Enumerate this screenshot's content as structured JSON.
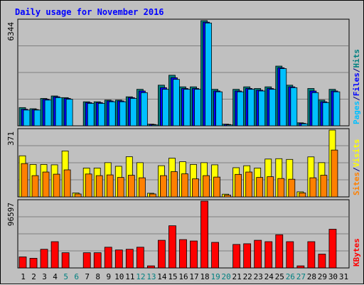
{
  "title": "Daily usage for November 2016",
  "panels": {
    "top": {
      "ymax_label": "6344",
      "legend": [
        {
          "text": "Pages",
          "color": "#00c0ff"
        },
        {
          "text": "/",
          "color": "#000080"
        },
        {
          "text": "Files",
          "color": "#0000ff"
        },
        {
          "text": "/",
          "color": "#000080"
        },
        {
          "text": "Hits",
          "color": "#008080"
        }
      ]
    },
    "middle": {
      "ymax_label": "371",
      "legend": [
        {
          "text": "Sites",
          "color": "#ff8000"
        },
        {
          "text": "/",
          "color": "#000080"
        },
        {
          "text": "Visits",
          "color": "#ffff00"
        }
      ]
    },
    "bottom": {
      "ymax_label": "96597",
      "legend": [
        {
          "text": "KBytes",
          "color": "#ff0000"
        }
      ]
    }
  },
  "colors": {
    "background": "#c0c0c0",
    "plot_bg": "#c0c0c0",
    "grid": "#808080",
    "title": "#0000ff",
    "weekday_label": "#000000",
    "weekend_label": "#008080",
    "hits": "#008080",
    "files": "#0000ff",
    "pages": "#00c0ff",
    "visits": "#ffff00",
    "sites": "#ff8000",
    "kbytes": "#ff0000"
  },
  "chart_data": {
    "type": "bar",
    "title": "Daily usage for November 2016",
    "categories": [
      "1",
      "2",
      "3",
      "4",
      "5",
      "6",
      "7",
      "8",
      "9",
      "10",
      "11",
      "12",
      "13",
      "14",
      "15",
      "16",
      "17",
      "18",
      "19",
      "20",
      "21",
      "22",
      "23",
      "24",
      "25",
      "26",
      "27",
      "28",
      "29",
      "30",
      "31"
    ],
    "weekend_days": [
      "5",
      "6",
      "12",
      "13",
      "19",
      "20",
      "26",
      "27"
    ],
    "panels": [
      {
        "name": "top",
        "ylim": [
          0,
          6344
        ],
        "series": [
          {
            "name": "Hits",
            "values": [
              1100,
              1030,
              1650,
              1800,
              1700,
              0,
              1450,
              1450,
              1550,
              1550,
              1750,
              2200,
              100,
              2450,
              3050,
              2350,
              2350,
              6344,
              2200,
              100,
              2200,
              2350,
              2250,
              2350,
              3600,
              2450,
              180,
              2250,
              1550,
              2200,
              0
            ]
          },
          {
            "name": "Files",
            "values": [
              1000,
              980,
              1600,
              1750,
              1650,
              0,
              1400,
              1400,
              1500,
              1500,
              1700,
              2100,
              80,
              2300,
              2900,
              2250,
              2250,
              6250,
              2100,
              80,
              2100,
              2250,
              2150,
              2250,
              3500,
              2350,
              150,
              2100,
              1450,
              2100,
              0
            ]
          },
          {
            "name": "Pages",
            "values": [
              950,
              950,
              1550,
              1700,
              1600,
              0,
              1350,
              1350,
              1450,
              1450,
              1650,
              2000,
              50,
              2200,
              2800,
              2200,
              2200,
              6200,
              2050,
              50,
              2050,
              2200,
              2100,
              2200,
              3450,
              2300,
              120,
              2000,
              1400,
              2050,
              0
            ]
          }
        ]
      },
      {
        "name": "middle",
        "ylim": [
          0,
          371
        ],
        "series": [
          {
            "name": "Visits",
            "values": [
              228,
              180,
              180,
              178,
              255,
              22,
              160,
              160,
              190,
              170,
              223,
              190,
              20,
              173,
              215,
              195,
              180,
              190,
              178,
              15,
              162,
              173,
              160,
              210,
              212,
              208,
              28,
              222,
              190,
              371,
              0
            ]
          },
          {
            "name": "Sites",
            "values": [
              185,
              118,
              138,
              126,
              150,
              16,
              127,
              118,
              122,
              108,
              120,
              106,
              16,
              118,
              140,
              128,
              100,
              118,
              110,
              10,
              125,
              138,
              108,
              112,
              102,
              98,
              22,
              106,
              120,
              260,
              0
            ]
          }
        ]
      },
      {
        "name": "bottom",
        "ylim": [
          0,
          96597
        ],
        "series": [
          {
            "name": "KBytes",
            "values": [
              16000,
              14000,
              27000,
              38000,
              22000,
              0,
              22000,
              22000,
              30000,
              26000,
              27000,
              30000,
              3000,
              40000,
              61000,
              41000,
              39000,
              96597,
              37000,
              0,
              34000,
              35000,
              40000,
              38000,
              48000,
              38000,
              3000,
              38000,
              20000,
              56000,
              0
            ]
          }
        ]
      }
    ]
  }
}
